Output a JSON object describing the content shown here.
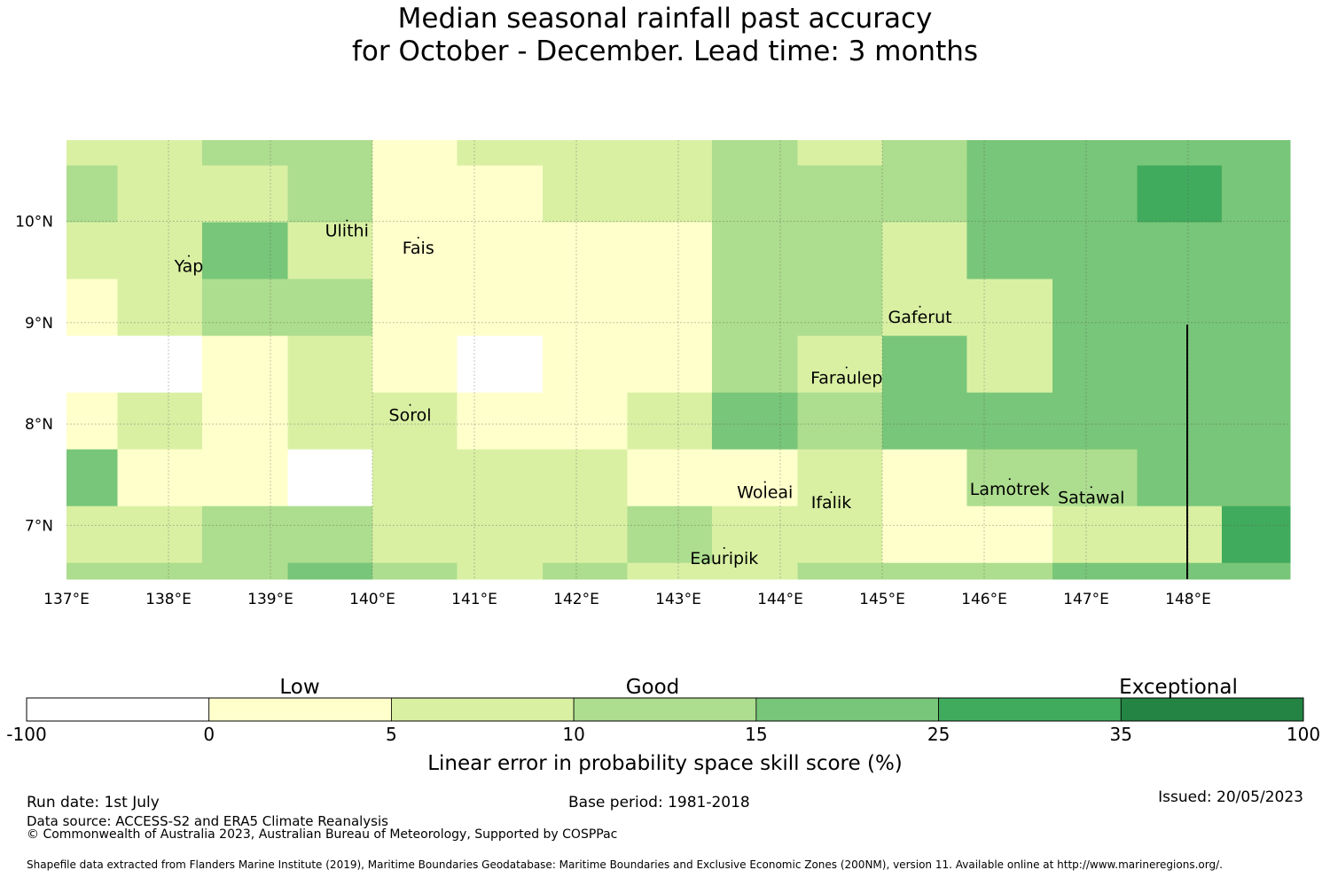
{
  "title": {
    "line1": "Median seasonal rainfall past accuracy",
    "line2": "for October - December. Lead time: 3 months"
  },
  "map": {
    "lon_ticks": [
      "137°E",
      "138°E",
      "139°E",
      "140°E",
      "141°E",
      "142°E",
      "143°E",
      "144°E",
      "145°E",
      "146°E",
      "147°E",
      "148°E"
    ],
    "lat_ticks": [
      "10°N",
      "9°N",
      "8°N",
      "7°N"
    ],
    "colors": {
      "nodata": "#ffffff",
      "c0_5": "#ffffcc",
      "c5_10": "#d9f0a3",
      "c10_15": "#addd8e",
      "c15_25": "#78c679",
      "c25_35": "#41ab5d",
      "c35_100": "#238443"
    },
    "cols_lon_edges": [
      137.0,
      137.5,
      138.33,
      139.17,
      140.0,
      140.83,
      141.67,
      142.5,
      143.33,
      144.17,
      145.0,
      145.83,
      146.67,
      147.5,
      148.33,
      149.0
    ],
    "rows_lat_edges": [
      10.8,
      10.55,
      9.99,
      9.43,
      8.87,
      8.31,
      7.75,
      7.19,
      6.63,
      6.47
    ],
    "grid": [
      [
        "c5_10",
        "c5_10",
        "c10_15",
        "c10_15",
        "c0_5",
        "c5_10",
        "c5_10",
        "c5_10",
        "c10_15",
        "c5_10",
        "c10_15",
        "c15_25",
        "c15_25",
        "c15_25",
        "c15_25"
      ],
      [
        "c10_15",
        "c5_10",
        "c5_10",
        "c10_15",
        "c0_5",
        "c0_5",
        "c5_10",
        "c5_10",
        "c10_15",
        "c10_15",
        "c10_15",
        "c15_25",
        "c15_25",
        "c25_35",
        "c15_25"
      ],
      [
        "c5_10",
        "c5_10",
        "c15_25",
        "c5_10",
        "c0_5",
        "c0_5",
        "c0_5",
        "c0_5",
        "c10_15",
        "c10_15",
        "c5_10",
        "c15_25",
        "c15_25",
        "c15_25",
        "c15_25"
      ],
      [
        "c0_5",
        "c5_10",
        "c10_15",
        "c10_15",
        "c0_5",
        "c0_5",
        "c0_5",
        "c0_5",
        "c10_15",
        "c10_15",
        "c5_10",
        "c5_10",
        "c15_25",
        "c15_25",
        "c15_25"
      ],
      [
        "nodata",
        "nodata",
        "c0_5",
        "c5_10",
        "c0_5",
        "nodata",
        "c0_5",
        "c0_5",
        "c10_15",
        "c5_10",
        "c15_25",
        "c5_10",
        "c15_25",
        "c15_25",
        "c15_25"
      ],
      [
        "c0_5",
        "c5_10",
        "c0_5",
        "c5_10",
        "c5_10",
        "c0_5",
        "c0_5",
        "c5_10",
        "c15_25",
        "c10_15",
        "c15_25",
        "c15_25",
        "c15_25",
        "c15_25",
        "c15_25"
      ],
      [
        "c15_25",
        "c0_5",
        "c0_5",
        "nodata",
        "c5_10",
        "c5_10",
        "c5_10",
        "c0_5",
        "c0_5",
        "c5_10",
        "c0_5",
        "c10_15",
        "c10_15",
        "c15_25",
        "c15_25"
      ],
      [
        "c5_10",
        "c5_10",
        "c10_15",
        "c10_15",
        "c5_10",
        "c5_10",
        "c5_10",
        "c10_15",
        "c5_10",
        "c5_10",
        "c0_5",
        "c0_5",
        "c5_10",
        "c5_10",
        "c25_35"
      ],
      [
        "c10_15",
        "c10_15",
        "c10_15",
        "c15_25",
        "c10_15",
        "c5_10",
        "c10_15",
        "c5_10",
        "c5_10",
        "c10_15",
        "c10_15",
        "c10_15",
        "c15_25",
        "c15_25",
        "c15_25"
      ]
    ],
    "places": [
      {
        "name": "Ulithi",
        "lon": 139.75,
        "lat": 9.85
      },
      {
        "name": "Fais",
        "lon": 140.45,
        "lat": 9.68
      },
      {
        "name": "Yap",
        "lon": 138.2,
        "lat": 9.5
      },
      {
        "name": "Gaferut",
        "lon": 145.37,
        "lat": 9.0
      },
      {
        "name": "Faraulep",
        "lon": 144.65,
        "lat": 8.4
      },
      {
        "name": "Sorol",
        "lon": 140.37,
        "lat": 8.03
      },
      {
        "name": "Woleai",
        "lon": 143.85,
        "lat": 7.27
      },
      {
        "name": "Ifalik",
        "lon": 144.5,
        "lat": 7.17
      },
      {
        "name": "Lamotrek",
        "lon": 146.25,
        "lat": 7.3
      },
      {
        "name": "Satawal",
        "lon": 147.05,
        "lat": 7.22
      },
      {
        "name": "Eauripik",
        "lon": 143.45,
        "lat": 6.62
      }
    ]
  },
  "colorbar": {
    "categories": [
      "Low",
      "Good",
      "Exceptional"
    ],
    "ticks": [
      "-100",
      "0",
      "5",
      "10",
      "15",
      "25",
      "35",
      "100"
    ],
    "bins": [
      "nodata",
      "c0_5",
      "c5_10",
      "c10_15",
      "c15_25",
      "c25_35",
      "c35_100"
    ],
    "title": "Linear error in probability space skill score (%)"
  },
  "footer": {
    "run_date": "Run date: 1st July",
    "base_period": "Base period: 1981-2018",
    "issued": "Issued: 20/05/2023",
    "data_source": "Data source: ACCESS-S2 and ERA5 Climate Reanalysis",
    "copyright": "© Commonwealth of Australia 2023, Australian Bureau of Meteorology, Supported by COSPPac",
    "shapefile": "Shapefile data extracted from Flanders Marine Institute (2019), Maritime Boundaries Geodatabase: Maritime Boundaries and Exclusive Economic Zones (200NM), version 11. Available online at http://www.marineregions.org/."
  }
}
